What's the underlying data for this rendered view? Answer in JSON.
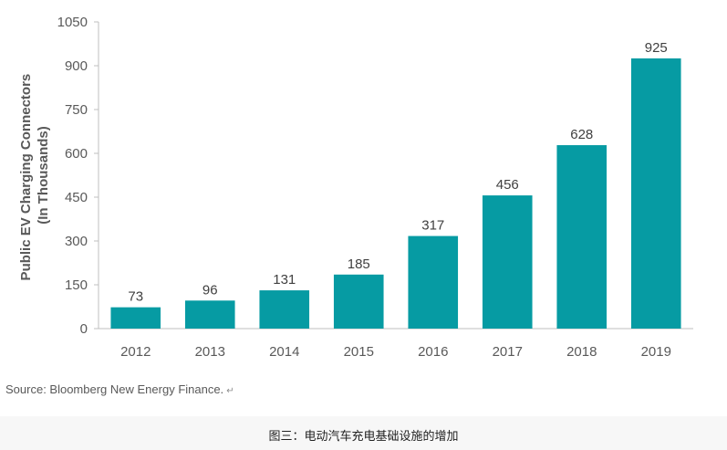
{
  "chart_data": {
    "type": "bar",
    "categories": [
      "2012",
      "2013",
      "2014",
      "2015",
      "2016",
      "2017",
      "2018",
      "2019"
    ],
    "values": [
      73,
      96,
      131,
      185,
      317,
      456,
      628,
      925
    ],
    "ylabel_line1": "Public EV Charging Connectors",
    "ylabel_line2": "(In Thousands)",
    "ylim": [
      0,
      1050
    ],
    "yticks": [
      0,
      150,
      300,
      450,
      600,
      750,
      900,
      1050
    ],
    "bar_color": "#069BA3",
    "grid": false,
    "legend": "none"
  },
  "source": "Source: Bloomberg New Energy Finance.",
  "source_mark": "↵",
  "caption": "图三：电动汽车充电基础设施的增加"
}
